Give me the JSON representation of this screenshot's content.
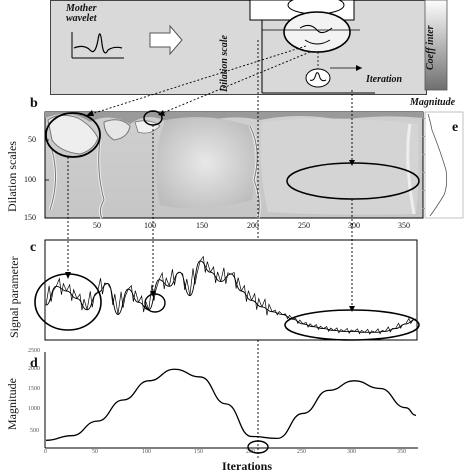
{
  "panel_a": {
    "mother_wavelet_label": "Mother\nwavelet",
    "dilation_scale_label": "Dilation scale",
    "iteration_label": "Iteration",
    "coeff_label": "Coeff inter"
  },
  "panel_b": {
    "letter": "b",
    "ylabel": "Dilation scales",
    "yticks": [
      "50",
      "100",
      "150"
    ],
    "xticks": [
      "50",
      "100",
      "150",
      "200",
      "250",
      "300",
      "350"
    ]
  },
  "panel_e": {
    "letter": "e",
    "title": "Magnitude"
  },
  "panel_c": {
    "letter": "c",
    "ylabel": "Signal parameter"
  },
  "panel_d": {
    "letter": "d",
    "ylabel": "Magnitude",
    "xlabel": "Iterations",
    "yticks": [
      "2500",
      "2000",
      "1500",
      "1000",
      "500"
    ],
    "xticks": [
      "0",
      "50",
      "100",
      "150",
      "200",
      "250",
      "300",
      "350"
    ]
  },
  "chart_data": [
    {
      "type": "line",
      "panel": "c",
      "ylabel": "Signal parameter",
      "x": [
        0,
        10,
        20,
        30,
        40,
        50,
        60,
        70,
        80,
        90,
        100,
        110,
        120,
        130,
        140,
        150,
        160,
        170,
        180,
        190,
        200,
        210,
        220,
        230,
        240,
        250,
        260,
        270,
        280,
        290,
        300,
        310,
        320,
        330,
        340,
        350,
        360
      ],
      "values": [
        0.35,
        0.55,
        0.5,
        0.42,
        0.3,
        0.48,
        0.58,
        0.25,
        0.52,
        0.38,
        0.3,
        0.62,
        0.55,
        0.7,
        0.45,
        0.82,
        0.7,
        0.6,
        0.68,
        0.5,
        0.4,
        0.33,
        0.28,
        0.25,
        0.2,
        0.15,
        0.12,
        0.1,
        0.08,
        0.07,
        0.07,
        0.06,
        0.06,
        0.07,
        0.1,
        0.15,
        0.2
      ]
    },
    {
      "type": "line",
      "panel": "d",
      "ylabel": "Magnitude",
      "xlabel": "Iterations",
      "ylim": [
        0,
        2500
      ],
      "x": [
        0,
        25,
        50,
        75,
        100,
        125,
        150,
        175,
        200,
        225,
        250,
        275,
        300,
        325,
        350,
        360
      ],
      "values": [
        200,
        320,
        700,
        1250,
        1750,
        2050,
        1850,
        1150,
        300,
        250,
        900,
        1500,
        1750,
        1550,
        1050,
        850
      ]
    }
  ]
}
